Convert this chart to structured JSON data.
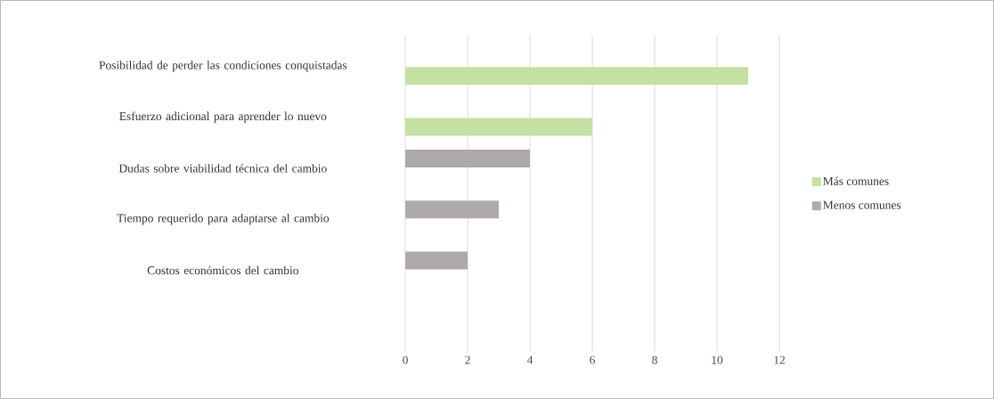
{
  "chart_data": {
    "type": "bar",
    "orientation": "horizontal",
    "categories": [
      "Posibilidad de perder las condiciones conquistadas",
      "Esfuerzo adicional para aprender lo nuevo",
      "Dudas sobre viabilidad técnica del cambio",
      "Tiempo requerido para adaptarse al cambio",
      "Costos económicos del cambio"
    ],
    "series": [
      {
        "name": "Más comunes",
        "color": "#c5e0a3",
        "values": [
          11,
          6,
          null,
          null,
          null
        ]
      },
      {
        "name": "Menos comunes",
        "color": "#aeaaaa",
        "values": [
          null,
          null,
          4,
          3,
          2
        ]
      }
    ],
    "xlim": [
      0,
      12
    ],
    "xticks": [
      0,
      2,
      4,
      6,
      8,
      10,
      12
    ],
    "grid": "x",
    "legend": "right"
  }
}
